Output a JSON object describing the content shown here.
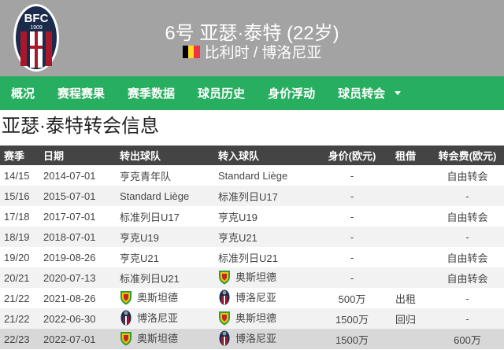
{
  "header": {
    "title": "6号 亚瑟·泰特 (22岁)",
    "nationality": "比利时 / 博洛尼亚",
    "flag_colors": [
      "#000000",
      "#fdda24",
      "#ef3340"
    ],
    "logo_text": "BFC 1909"
  },
  "nav": {
    "items": [
      "概况",
      "赛程赛果",
      "赛季数据",
      "球员历史",
      "身价浮动",
      "球员转会"
    ],
    "color": "#27ae60"
  },
  "page_title": "亚瑟·泰特转会信息",
  "table": {
    "columns": [
      "赛季",
      "日期",
      "转出球队",
      "转入球队",
      "身价(欧元)",
      "租借",
      "转会费(欧元)"
    ],
    "rows": [
      {
        "season": "14/15",
        "date": "2014-07-01",
        "from": "亨克青年队",
        "to": "Standard Liège",
        "value": "-",
        "loan": "",
        "fee": "自由转会"
      },
      {
        "season": "15/16",
        "date": "2015-07-01",
        "from": "Standard Liège",
        "to": "标准列日U17",
        "value": "-",
        "loan": "",
        "fee": "-"
      },
      {
        "season": "17/18",
        "date": "2017-07-01",
        "from": "标准列日U17",
        "to": "亨克U19",
        "value": "-",
        "loan": "",
        "fee": "自由转会"
      },
      {
        "season": "18/19",
        "date": "2018-07-01",
        "from": "亨克U19",
        "to": "亨克U21",
        "value": "-",
        "loan": "",
        "fee": "-"
      },
      {
        "season": "19/20",
        "date": "2019-08-26",
        "from": "亨克U21",
        "to": "标准列日U21",
        "value": "-",
        "loan": "",
        "fee": "自由转会"
      },
      {
        "season": "20/21",
        "date": "2020-07-13",
        "from": "标准列日U21",
        "to": "奥斯坦德",
        "to_badge": "ostend",
        "value": "-",
        "loan": "",
        "fee": "自由转会"
      },
      {
        "season": "21/22",
        "date": "2021-08-26",
        "from": "奥斯坦德",
        "from_badge": "ostend",
        "to": "博洛尼亚",
        "to_badge": "bologna",
        "value": "500万",
        "loan": "出租",
        "fee": "-"
      },
      {
        "season": "21/22",
        "date": "2022-06-30",
        "from": "博洛尼亚",
        "from_badge": "bologna",
        "to": "奥斯坦德",
        "to_badge": "ostend",
        "value": "1500万",
        "loan": "回归",
        "fee": "-"
      },
      {
        "season": "22/23",
        "date": "2022-07-01",
        "from": "奥斯坦德",
        "from_badge": "ostend",
        "to": "博洛尼亚",
        "to_badge": "bologna",
        "value": "1500万",
        "loan": "",
        "fee": "600万",
        "highlighted": true
      }
    ]
  }
}
